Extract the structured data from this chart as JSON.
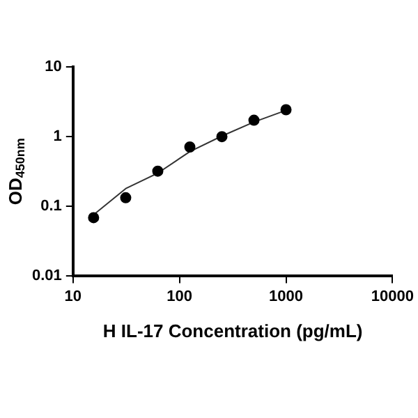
{
  "chart_data": {
    "type": "scatter",
    "xlabel": "H IL-17 Concentration (pg/mL)",
    "ylabel": "OD$_{450nm}$",
    "log": "xy",
    "grid": false,
    "legend": false,
    "marker": "circle",
    "x": [
      15.6,
      31.25,
      62.5,
      125,
      250,
      500,
      1000
    ],
    "series": [
      {
        "color": "#000000",
        "values": [
          0.069,
          0.133,
          0.32,
          0.71,
          1.0,
          1.72,
          2.43
        ]
      },
      {
        "type": "line",
        "color": "#333333",
        "marker": "none",
        "x": [
          15.6,
          31.25,
          62.5,
          125,
          250,
          500,
          1000
        ],
        "values": [
          0.076,
          0.18,
          0.3,
          0.61,
          1.02,
          1.62,
          2.38
        ]
      }
    ],
    "xlim": [
      10,
      10000
    ],
    "xticks": [
      10,
      100,
      1000,
      10000
    ],
    "ylim": [
      0.01,
      10
    ],
    "yticks": [
      0.01,
      0.1,
      1,
      10
    ]
  }
}
